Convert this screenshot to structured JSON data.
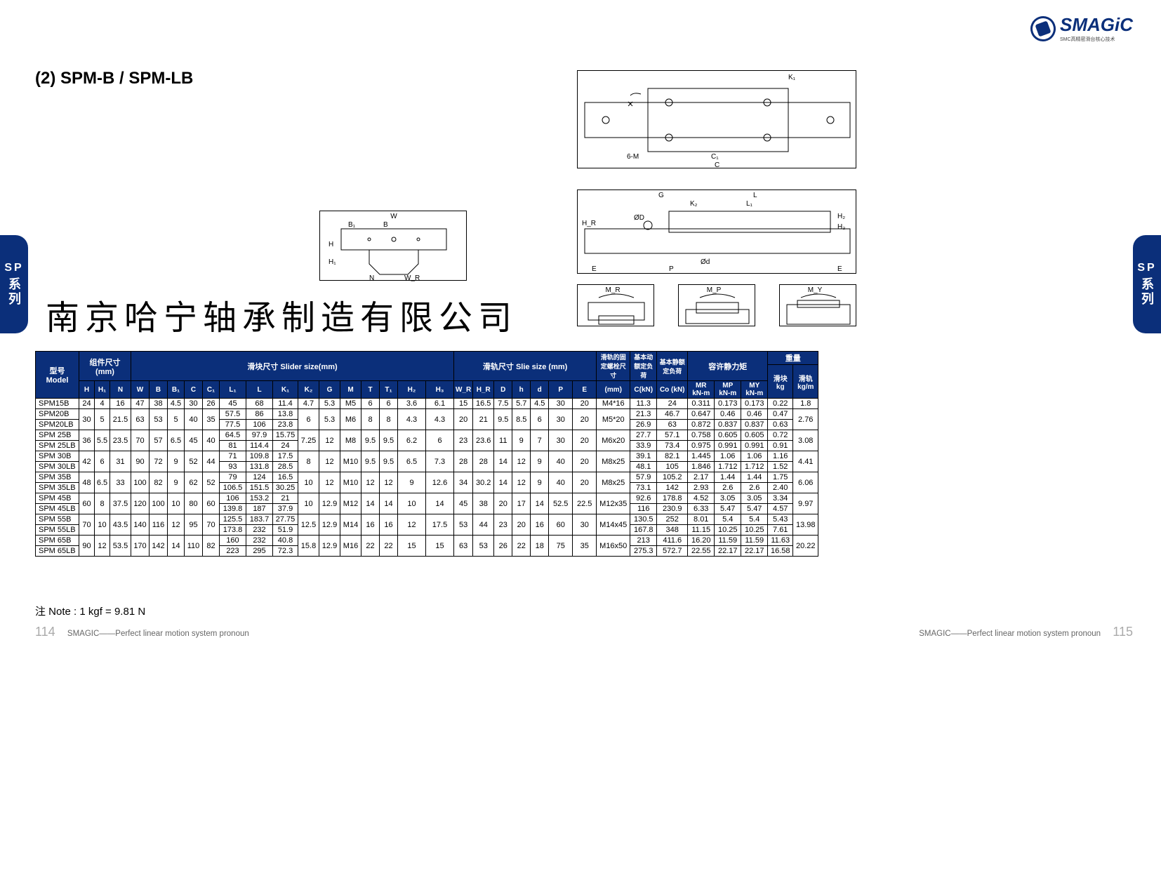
{
  "logo": {
    "text": "SMAGiC",
    "sub": "SMC高精密滑台核心技术"
  },
  "title": "(2) SPM-B / SPM-LB",
  "side_tab": {
    "sp": "SP",
    "series": "系列"
  },
  "company": "南京哈宁轴承制造有限公司",
  "diagrams": {
    "d1_labels": [
      "W",
      "B",
      "B₁",
      "H",
      "H₁",
      "N",
      "W_R"
    ],
    "d2_labels": [
      "K₁",
      "6-M",
      "C₁",
      "C"
    ],
    "d3_labels": [
      "G",
      "L",
      "K₂",
      "L₁",
      "ØD",
      "H_R",
      "H₂",
      "H₃",
      "E",
      "P",
      "Ød",
      "E"
    ],
    "d4_label": "M_R",
    "d5_label": "M_P",
    "d6_label": "M_Y"
  },
  "table": {
    "header_groups": [
      {
        "label": "型号\nModel",
        "span": 1,
        "rows": 3
      },
      {
        "label": "组件尺寸\n(mm)",
        "span": 3
      },
      {
        "label": "滑块尺寸 Slider size(mm)",
        "span": 15
      },
      {
        "label": "滑轨尺寸 Slie size (mm)",
        "span": 7
      },
      {
        "label": "滑轨的固定螺栓尺寸",
        "span": 1,
        "rows": 2
      },
      {
        "label": "基本动额定负荷",
        "span": 1,
        "rows": 2
      },
      {
        "label": "基本静额定负荷",
        "span": 1,
        "rows": 2
      },
      {
        "label": "容许静力矩",
        "span": 3
      },
      {
        "label": "重量",
        "span": 2
      }
    ],
    "sub_headers_weight": [
      "滑块\nkg",
      "滑轨\nkg/m"
    ],
    "cols": [
      "H",
      "H₁",
      "N",
      "W",
      "B",
      "B₁",
      "C",
      "C₁",
      "L₁",
      "L",
      "K₁",
      "K₂",
      "G",
      "M",
      "T",
      "T₁",
      "H₂",
      "H₃",
      "W_R",
      "H_R",
      "D",
      "h",
      "d",
      "P",
      "E",
      "(mm)",
      "C(kN)",
      "Co (kN)",
      "MR\nkN-m",
      "MP\nkN-m",
      "MY\nkN-m"
    ],
    "rows": [
      {
        "model": "SPM15B",
        "span": 1,
        "shared": [
          "24",
          "4",
          "16",
          "47",
          "38",
          "4.5",
          "30",
          "26"
        ],
        "own": [
          "45",
          "68",
          "11.4"
        ],
        "shared2": [
          "4.7",
          "5.3",
          "M5",
          "6",
          "6",
          "3.6",
          "6.1"
        ],
        "shared3": [
          "15",
          "16.5",
          "7.5",
          "5.7",
          "4.5",
          "30",
          "20",
          "M4*16"
        ],
        "vals": [
          "11.3",
          "24",
          "0.311",
          "0.173",
          "0.173",
          "0.22",
          "1.8"
        ]
      },
      {
        "model": "SPM20B",
        "span": 2,
        "shared": [
          "30",
          "5",
          "21.5",
          "63",
          "53",
          "5",
          "40",
          "35"
        ],
        "own": [
          "57.5",
          "86",
          "13.8"
        ],
        "shared2": [
          "6",
          "5.3",
          "M6",
          "8",
          "8",
          "4.3",
          "4.3"
        ],
        "shared3": [
          "20",
          "21",
          "9.5",
          "8.5",
          "6",
          "30",
          "20",
          "M5*20"
        ],
        "vals": [
          "21.3",
          "46.7",
          "0.647",
          "0.46",
          "0.46",
          "0.47",
          "2.76"
        ]
      },
      {
        "model": "SPM20LB",
        "own": [
          "77.5",
          "106",
          "23.8"
        ],
        "vals": [
          "26.9",
          "63",
          "0.872",
          "0.837",
          "0.837",
          "0.63"
        ]
      },
      {
        "model": "SPM 25B",
        "span": 2,
        "shared": [
          "36",
          "5.5",
          "23.5",
          "70",
          "57",
          "6.5",
          "45",
          "40"
        ],
        "own": [
          "64.5",
          "97.9",
          "15.75"
        ],
        "shared2": [
          "7.25",
          "12",
          "M8",
          "9.5",
          "9.5",
          "6.2",
          "6"
        ],
        "shared3": [
          "23",
          "23.6",
          "11",
          "9",
          "7",
          "30",
          "20",
          "M6x20"
        ],
        "vals": [
          "27.7",
          "57.1",
          "0.758",
          "0.605",
          "0.605",
          "0.72",
          "3.08"
        ]
      },
      {
        "model": "SPM 25LB",
        "own": [
          "81",
          "114.4",
          "24"
        ],
        "vals": [
          "33.9",
          "73.4",
          "0.975",
          "0.991",
          "0.991",
          "0.91"
        ]
      },
      {
        "model": "SPM 30B",
        "span": 2,
        "shared": [
          "42",
          "6",
          "31",
          "90",
          "72",
          "9",
          "52",
          "44"
        ],
        "own": [
          "71",
          "109.8",
          "17.5"
        ],
        "shared2": [
          "8",
          "12",
          "M10",
          "9.5",
          "9.5",
          "6.5",
          "7.3"
        ],
        "shared3": [
          "28",
          "28",
          "14",
          "12",
          "9",
          "40",
          "20",
          "M8x25"
        ],
        "vals": [
          "39.1",
          "82.1",
          "1.445",
          "1.06",
          "1.06",
          "1.16",
          "4.41"
        ]
      },
      {
        "model": "SPM 30LB",
        "own": [
          "93",
          "131.8",
          "28.5"
        ],
        "vals": [
          "48.1",
          "105",
          "1.846",
          "1.712",
          "1.712",
          "1.52"
        ]
      },
      {
        "model": "SPM 35B",
        "span": 2,
        "shared": [
          "48",
          "6.5",
          "33",
          "100",
          "82",
          "9",
          "62",
          "52"
        ],
        "own": [
          "79",
          "124",
          "16.5"
        ],
        "shared2": [
          "10",
          "12",
          "M10",
          "12",
          "12",
          "9",
          "12.6"
        ],
        "shared3": [
          "34",
          "30.2",
          "14",
          "12",
          "9",
          "40",
          "20",
          "M8x25"
        ],
        "vals": [
          "57.9",
          "105.2",
          "2.17",
          "1.44",
          "1.44",
          "1.75",
          "6.06"
        ]
      },
      {
        "model": "SPM 35LB",
        "own": [
          "106.5",
          "151.5",
          "30.25"
        ],
        "vals": [
          "73.1",
          "142",
          "2.93",
          "2.6",
          "2.6",
          "2.40"
        ]
      },
      {
        "model": "SPM 45B",
        "span": 2,
        "shared": [
          "60",
          "8",
          "37.5",
          "120",
          "100",
          "10",
          "80",
          "60"
        ],
        "own": [
          "106",
          "153.2",
          "21"
        ],
        "shared2": [
          "10",
          "12.9",
          "M12",
          "14",
          "14",
          "10",
          "14"
        ],
        "shared3": [
          "45",
          "38",
          "20",
          "17",
          "14",
          "52.5",
          "22.5",
          "M12x35"
        ],
        "vals": [
          "92.6",
          "178.8",
          "4.52",
          "3.05",
          "3.05",
          "3.34",
          "9.97"
        ]
      },
      {
        "model": "SPM 45LB",
        "own": [
          "139.8",
          "187",
          "37.9"
        ],
        "vals": [
          "116",
          "230.9",
          "6.33",
          "5.47",
          "5.47",
          "4.57"
        ]
      },
      {
        "model": "SPM 55B",
        "span": 2,
        "shared": [
          "70",
          "10",
          "43.5",
          "140",
          "116",
          "12",
          "95",
          "70"
        ],
        "own": [
          "125.5",
          "183.7",
          "27.75"
        ],
        "shared2": [
          "12.5",
          "12.9",
          "M14",
          "16",
          "16",
          "12",
          "17.5"
        ],
        "shared3": [
          "53",
          "44",
          "23",
          "20",
          "16",
          "60",
          "30",
          "M14x45"
        ],
        "vals": [
          "130.5",
          "252",
          "8.01",
          "5.4",
          "5.4",
          "5.43",
          "13.98"
        ]
      },
      {
        "model": "SPM 55LB",
        "own": [
          "173.8",
          "232",
          "51.9"
        ],
        "vals": [
          "167.8",
          "348",
          "11.15",
          "10.25",
          "10.25",
          "7.61"
        ]
      },
      {
        "model": "SPM 65B",
        "span": 2,
        "shared": [
          "90",
          "12",
          "53.5",
          "170",
          "142",
          "14",
          "110",
          "82"
        ],
        "own": [
          "160",
          "232",
          "40.8"
        ],
        "shared2": [
          "15.8",
          "12.9",
          "M16",
          "22",
          "22",
          "15",
          "15"
        ],
        "shared3": [
          "63",
          "53",
          "26",
          "22",
          "18",
          "75",
          "35",
          "M16x50"
        ],
        "vals": [
          "213",
          "411.6",
          "16.20",
          "11.59",
          "11.59",
          "11.63",
          "20.22"
        ]
      },
      {
        "model": "SPM 65LB",
        "own": [
          "223",
          "295",
          "72.3"
        ],
        "vals": [
          "275.3",
          "572.7",
          "22.55",
          "22.17",
          "22.17",
          "16.58"
        ]
      }
    ]
  },
  "note": "注 Note : 1 kgf = 9.81 N",
  "footer": {
    "page_left": "114",
    "page_right": "115",
    "tagline": "SMAGIC——Perfect linear motion system pronoun"
  }
}
